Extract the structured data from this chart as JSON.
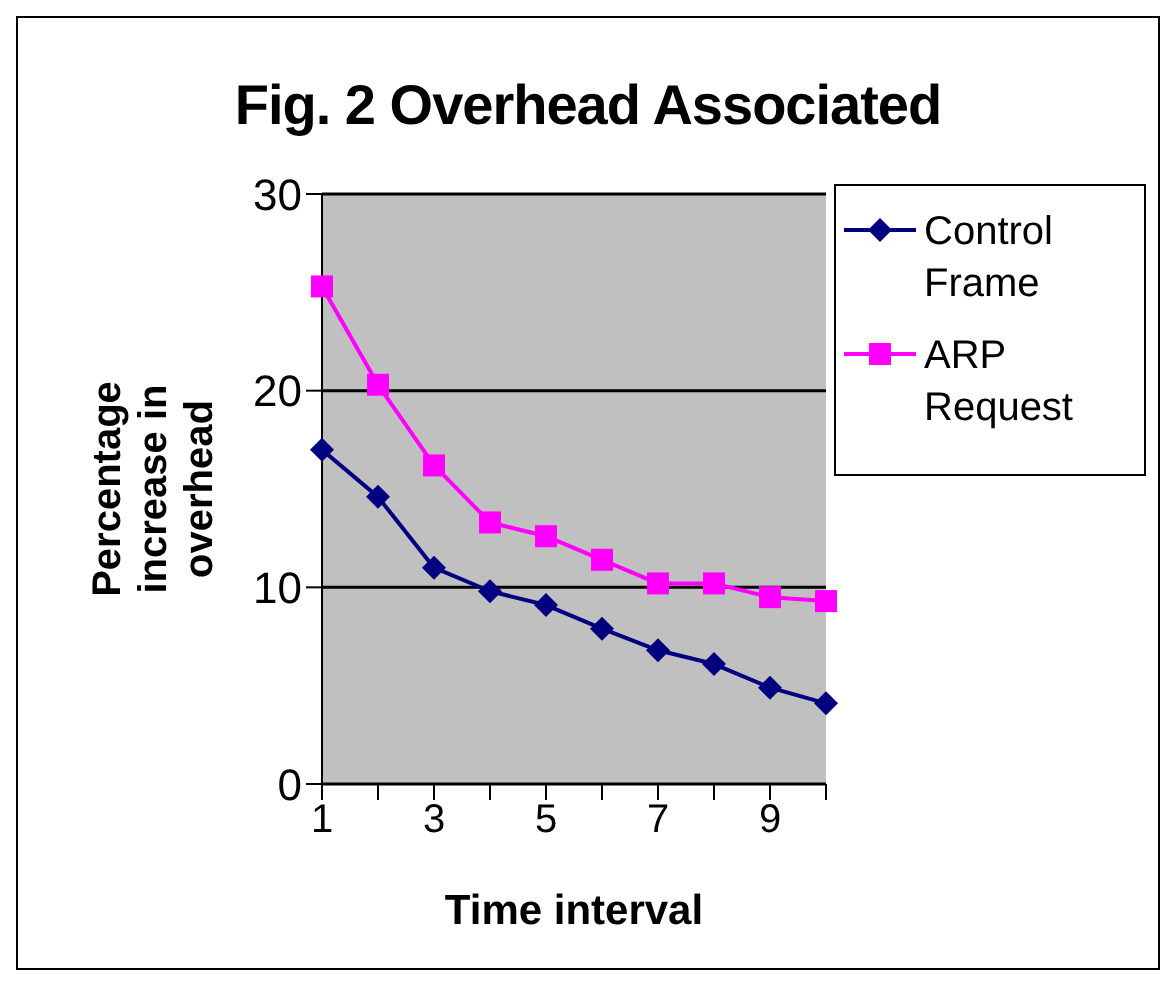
{
  "chart_data": {
    "type": "line",
    "title": "Fig. 2 Overhead Associated",
    "xlabel": "Time interval",
    "ylabel": "Percentage increase in overhead",
    "categories": [
      "1",
      null,
      "3",
      null,
      "5",
      null,
      "7",
      null,
      "9",
      null
    ],
    "series": [
      {
        "name": "Control Frame",
        "color": "#000080",
        "marker": "diamond",
        "values": [
          17.0,
          14.6,
          11.0,
          9.8,
          9.1,
          7.9,
          6.8,
          6.1,
          4.9,
          4.1
        ]
      },
      {
        "name": "ARP Request",
        "color": "#ff00ff",
        "marker": "square",
        "values": [
          25.3,
          20.3,
          16.2,
          13.3,
          12.6,
          11.4,
          10.2,
          10.2,
          9.5,
          9.3
        ]
      }
    ],
    "ylim": [
      0,
      30
    ],
    "yticks": [
      0,
      10,
      20,
      30
    ],
    "grid": "y",
    "legend": "right",
    "line_style": "solid"
  }
}
